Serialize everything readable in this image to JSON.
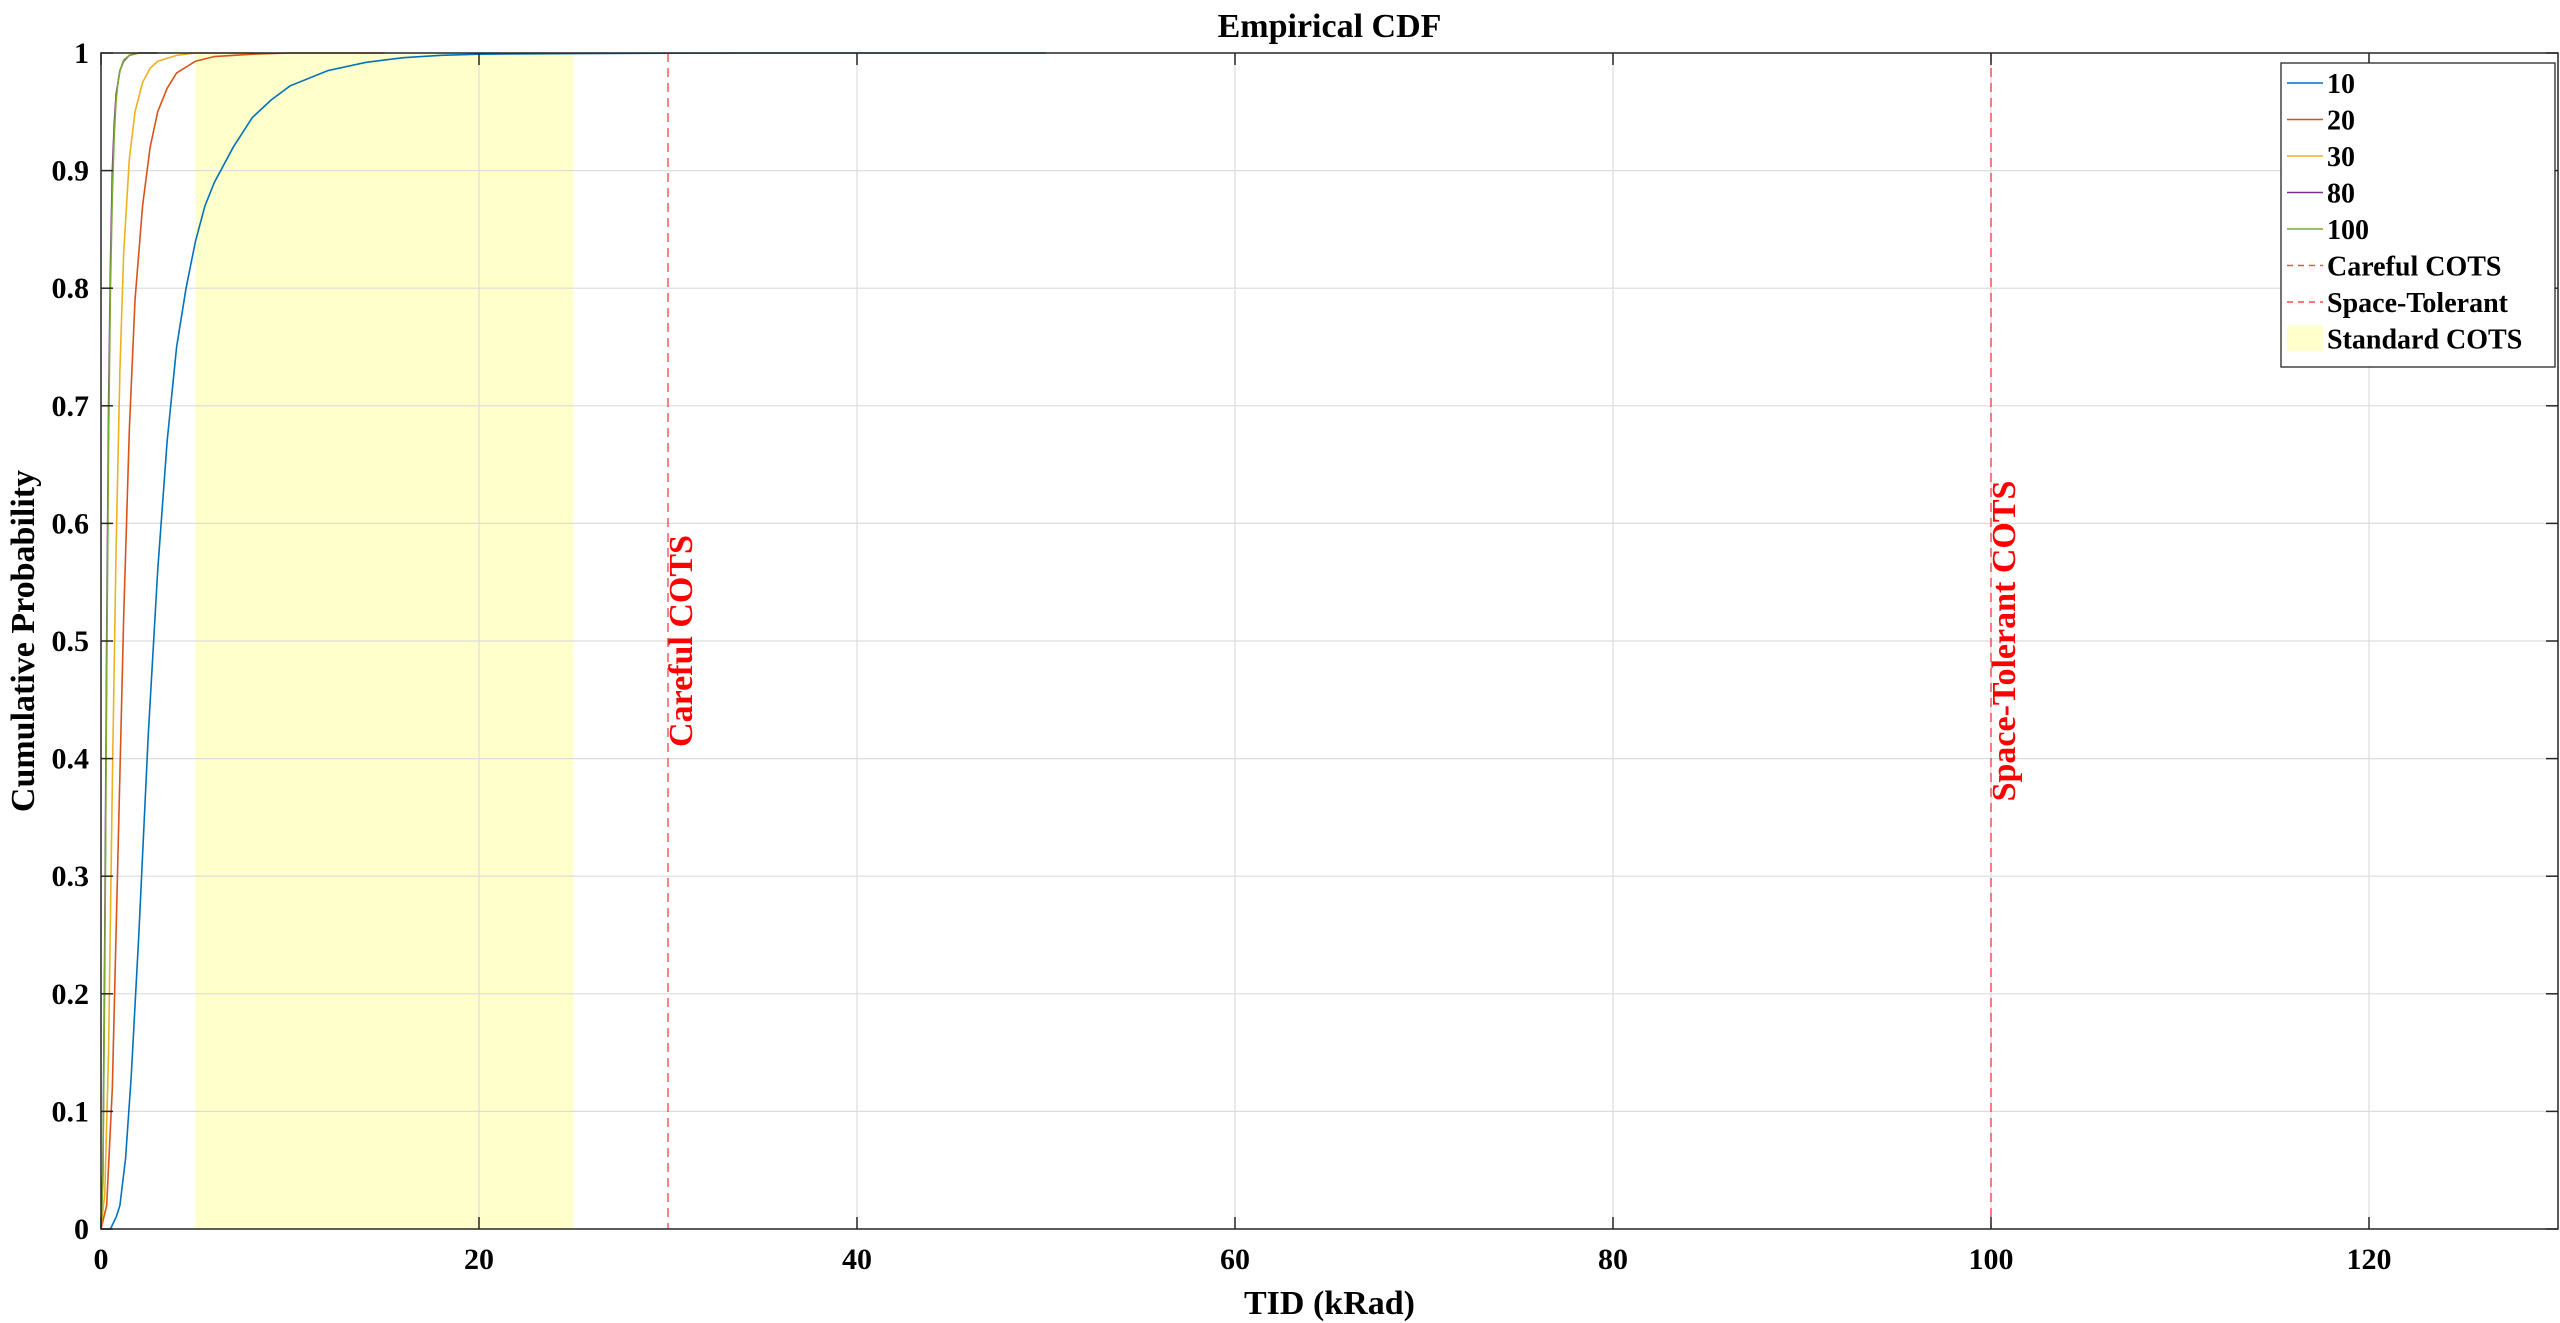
{
  "chart_data": {
    "type": "line",
    "title": "Empirical CDF",
    "xlabel": "TID (kRad)",
    "ylabel": "Cumulative Probability",
    "xlim": [
      0,
      130
    ],
    "ylim": [
      0,
      1
    ],
    "xticks": [
      0,
      20,
      40,
      60,
      80,
      100,
      120
    ],
    "xtick_labels": [
      "0",
      "20",
      "40",
      "60",
      "80",
      "100",
      "120"
    ],
    "yticks": [
      0,
      0.1,
      0.2,
      0.3,
      0.4,
      0.5,
      0.6,
      0.7,
      0.8,
      0.9,
      1
    ],
    "ytick_labels": [
      "0",
      "0.1",
      "0.2",
      "0.3",
      "0.4",
      "0.5",
      "0.6",
      "0.7",
      "0.8",
      "0.9",
      "1"
    ],
    "grid": true,
    "legend_position": "top-right",
    "series": [
      {
        "name": "10",
        "color": "#0072BD",
        "x": [
          0.0,
          0.5,
          0.8,
          1.0,
          1.3,
          1.6,
          2.0,
          2.5,
          3.0,
          3.5,
          4.0,
          4.5,
          5.0,
          5.5,
          6.0,
          7.0,
          8.0,
          9.0,
          10.0,
          12.0,
          14.0,
          16.0,
          18.0,
          20.0,
          25.0,
          30.0,
          35.0,
          50.0
        ],
        "y": [
          0.0,
          0.0,
          0.01,
          0.02,
          0.06,
          0.13,
          0.25,
          0.42,
          0.56,
          0.67,
          0.75,
          0.8,
          0.84,
          0.87,
          0.89,
          0.92,
          0.945,
          0.96,
          0.972,
          0.985,
          0.992,
          0.996,
          0.998,
          0.999,
          0.9995,
          0.9998,
          1.0,
          1.0
        ]
      },
      {
        "name": "20",
        "color": "#D95319",
        "x": [
          0.0,
          0.3,
          0.6,
          0.9,
          1.2,
          1.5,
          1.8,
          2.2,
          2.6,
          3.0,
          3.5,
          4.0,
          5.0,
          6.0,
          8.0,
          10.0,
          15.0
        ],
        "y": [
          0.0,
          0.02,
          0.12,
          0.32,
          0.52,
          0.68,
          0.79,
          0.87,
          0.92,
          0.95,
          0.97,
          0.983,
          0.993,
          0.997,
          0.999,
          1.0,
          1.0
        ]
      },
      {
        "name": "30",
        "color": "#EDB120",
        "x": [
          0.0,
          0.2,
          0.4,
          0.6,
          0.8,
          1.0,
          1.2,
          1.5,
          1.8,
          2.2,
          2.6,
          3.0,
          4.0,
          5.0,
          8.0
        ],
        "y": [
          0.0,
          0.03,
          0.15,
          0.38,
          0.58,
          0.73,
          0.83,
          0.91,
          0.95,
          0.975,
          0.987,
          0.993,
          0.998,
          1.0,
          1.0
        ]
      },
      {
        "name": "80",
        "color": "#7E2F8E",
        "x": [
          0.0,
          0.1,
          0.2,
          0.3,
          0.4,
          0.5,
          0.6,
          0.7,
          0.8,
          1.0,
          1.2,
          1.5,
          2.0,
          3.0
        ],
        "y": [
          0.0,
          0.05,
          0.25,
          0.5,
          0.7,
          0.82,
          0.9,
          0.94,
          0.965,
          0.985,
          0.993,
          0.998,
          1.0,
          1.0
        ]
      },
      {
        "name": "100",
        "color": "#77AC30",
        "x": [
          0.0,
          0.1,
          0.2,
          0.3,
          0.4,
          0.5,
          0.6,
          0.7,
          0.8,
          0.9,
          1.0,
          1.2,
          1.5,
          2.0,
          3.0
        ],
        "y": [
          0.0,
          0.04,
          0.22,
          0.47,
          0.67,
          0.8,
          0.88,
          0.93,
          0.96,
          0.975,
          0.985,
          0.994,
          0.998,
          1.0,
          1.0
        ]
      }
    ],
    "vlines": [
      {
        "name": "Careful COTS",
        "x": 30,
        "color": "#FF0000",
        "label": "Careful COTS"
      },
      {
        "name": "Space-Tolerant",
        "x": 100,
        "color": "#FF0000",
        "label": "Space-Tolerant COTS"
      }
    ],
    "bands": [
      {
        "name": "Standard COTS",
        "x0": 5,
        "x1": 25,
        "color": "#FFFFCC"
      }
    ]
  }
}
